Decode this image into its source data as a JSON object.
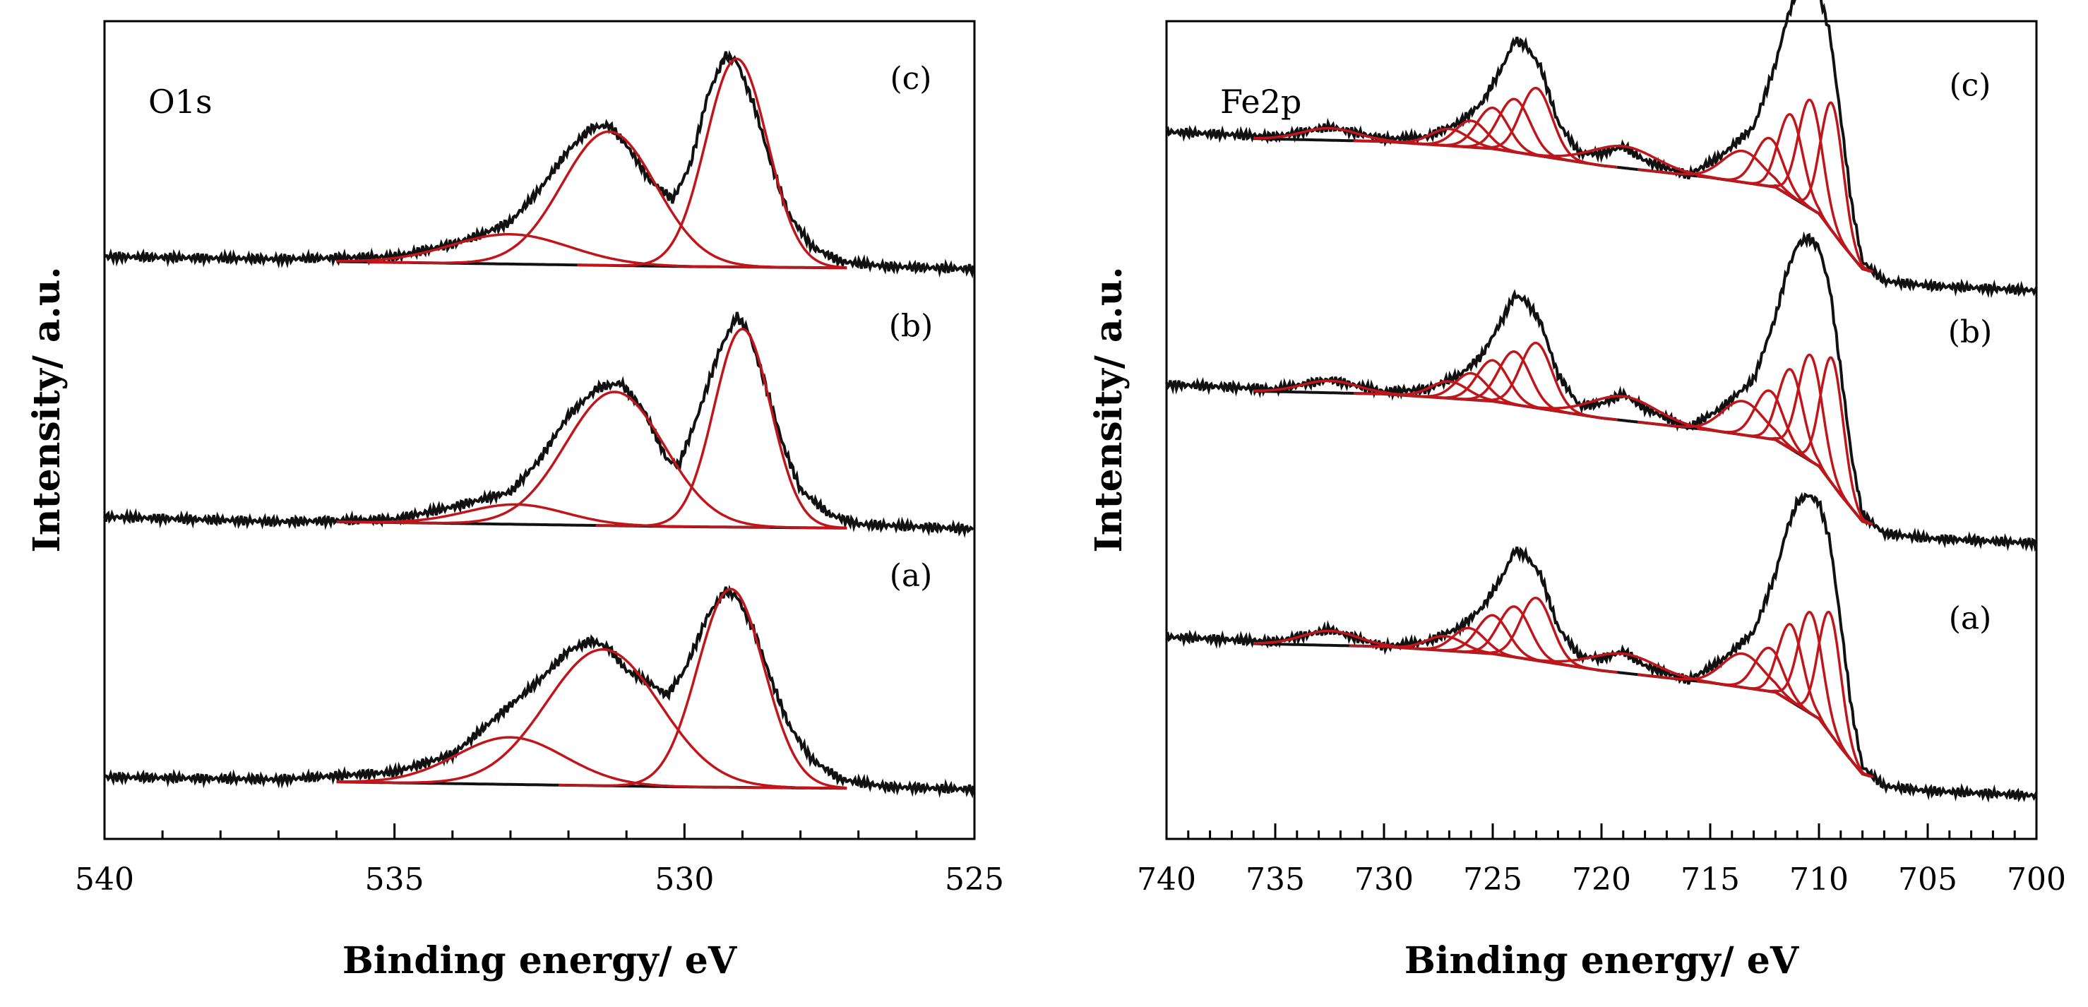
{
  "colors": {
    "experimental": "#111111",
    "component": "#c0161b",
    "axis": "#000000"
  },
  "chart_data": [
    {
      "type": "line",
      "title": "O1s",
      "xlabel": "Binding energy/ eV",
      "ylabel": "Intensity/ a.u.",
      "xlim": [
        540,
        525
      ],
      "x_reversed": true,
      "x_ticks": [
        540,
        535,
        530,
        525
      ],
      "x_tick_labels": [
        "540",
        "535",
        "530",
        "525"
      ],
      "x_minor_step": 1,
      "ylim": [
        -0.2,
        3.1
      ],
      "grid": false,
      "series": [
        {
          "name": "(a)",
          "offset": 0,
          "baseline": {
            "x": [
              540,
              536,
              530,
              525
            ],
            "y": [
              0.05,
              0.03,
              0.01,
              0.0
            ]
          },
          "components": [
            {
              "center": 533.0,
              "height": 0.19,
              "fwhm": 2.2
            },
            {
              "center": 531.4,
              "height": 0.55,
              "fwhm": 2.3
            },
            {
              "center": 529.2,
              "height": 0.8,
              "fwhm": 1.35
            }
          ],
          "envelope": {
            "x": [
              540,
              537,
              535,
              534,
              533.5,
              533,
              532.5,
              532,
              531.6,
              531.3,
              531,
              530.6,
              530.3,
              530,
              529.6,
              529.3,
              529.1,
              528.8,
              528.5,
              528.2,
              527.8,
              527.3,
              526.5,
              525
            ],
            "y": [
              0.05,
              0.04,
              0.07,
              0.14,
              0.24,
              0.34,
              0.44,
              0.56,
              0.6,
              0.57,
              0.48,
              0.43,
              0.38,
              0.48,
              0.7,
              0.8,
              0.78,
              0.64,
              0.44,
              0.26,
              0.12,
              0.04,
              0.01,
              0.0
            ]
          }
        },
        {
          "name": "(b)",
          "offset": 1.05,
          "baseline": {
            "x": [
              540,
              536,
              530,
              525
            ],
            "y": [
              0.05,
              0.03,
              0.01,
              0.0
            ]
          },
          "components": [
            {
              "center": 532.9,
              "height": 0.08,
              "fwhm": 2.0
            },
            {
              "center": 531.2,
              "height": 0.54,
              "fwhm": 2.0
            },
            {
              "center": 529.0,
              "height": 0.8,
              "fwhm": 1.15
            }
          ],
          "envelope": {
            "x": [
              540,
              537,
              535,
              534,
              533.5,
              533,
              532.5,
              532,
              531.5,
              531.1,
              530.7,
              530.3,
              530.1,
              529.8,
              529.4,
              529.1,
              528.9,
              528.6,
              528.3,
              528,
              527.5,
              527,
              526,
              525
            ],
            "y": [
              0.05,
              0.03,
              0.04,
              0.09,
              0.12,
              0.15,
              0.28,
              0.46,
              0.57,
              0.59,
              0.48,
              0.28,
              0.26,
              0.44,
              0.72,
              0.86,
              0.8,
              0.58,
              0.34,
              0.16,
              0.06,
              0.02,
              0.01,
              0.0
            ]
          }
        },
        {
          "name": "(c)",
          "offset": 2.1,
          "baseline": {
            "x": [
              540,
              536,
              530,
              525
            ],
            "y": [
              0.05,
              0.03,
              0.01,
              0.0
            ]
          },
          "components": [
            {
              "center": 533.0,
              "height": 0.12,
              "fwhm": 2.4
            },
            {
              "center": 531.3,
              "height": 0.54,
              "fwhm": 1.9
            },
            {
              "center": 529.1,
              "height": 0.84,
              "fwhm": 1.25
            }
          ],
          "envelope": {
            "x": [
              540,
              537,
              535,
              534,
              533.5,
              533,
              532.5,
              532,
              531.6,
              531.3,
              531,
              530.6,
              530.2,
              529.9,
              529.6,
              529.3,
              529.1,
              528.8,
              528.5,
              528.2,
              527.8,
              527.3,
              526.5,
              525
            ],
            "y": [
              0.05,
              0.04,
              0.05,
              0.1,
              0.14,
              0.19,
              0.32,
              0.48,
              0.57,
              0.58,
              0.5,
              0.36,
              0.28,
              0.42,
              0.7,
              0.86,
              0.84,
              0.66,
              0.42,
              0.22,
              0.09,
              0.03,
              0.01,
              0.0
            ]
          }
        }
      ]
    },
    {
      "type": "line",
      "title": "Fe2p",
      "xlabel": "Binding energy/ eV",
      "ylabel": "Intensity/ a.u.",
      "xlim": [
        740,
        700
      ],
      "x_reversed": true,
      "x_ticks": [
        740,
        735,
        730,
        725,
        720,
        715,
        710,
        705,
        700
      ],
      "x_tick_labels": [
        "740",
        "735",
        "730",
        "725",
        "720",
        "715",
        "710",
        "705",
        "700"
      ],
      "x_minor_step": 1,
      "ylim": [
        -0.2,
        3.2
      ],
      "grid": false,
      "series": [
        {
          "name": "(a)",
          "offset": 0,
          "baseline": {
            "x": [
              740,
              730,
              725,
              720,
              715,
              712,
              710,
              709,
              708,
              706,
              700
            ],
            "y": [
              0.62,
              0.6,
              0.57,
              0.5,
              0.45,
              0.41,
              0.3,
              0.18,
              0.07,
              0.02,
              0.0
            ]
          },
          "components": [
            {
              "center": 732.5,
              "height": 0.06,
              "fwhm": 3.0
            },
            {
              "center": 727.2,
              "height": 0.06,
              "fwhm": 2.0
            },
            {
              "center": 726.1,
              "height": 0.1,
              "fwhm": 1.7
            },
            {
              "center": 725.0,
              "height": 0.16,
              "fwhm": 1.7
            },
            {
              "center": 724.0,
              "height": 0.21,
              "fwhm": 1.7
            },
            {
              "center": 723.0,
              "height": 0.26,
              "fwhm": 1.7
            },
            {
              "center": 719.0,
              "height": 0.08,
              "fwhm": 3.5
            },
            {
              "center": 713.5,
              "height": 0.14,
              "fwhm": 2.2
            },
            {
              "center": 712.3,
              "height": 0.18,
              "fwhm": 1.5
            },
            {
              "center": 711.3,
              "height": 0.32,
              "fwhm": 1.3
            },
            {
              "center": 710.4,
              "height": 0.42,
              "fwhm": 1.3
            },
            {
              "center": 709.5,
              "height": 0.5,
              "fwhm": 1.2
            }
          ],
          "envelope": {
            "x": [
              740,
              735,
              732.5,
              730,
              728,
              726.5,
              725.5,
              724.5,
              724,
              723.5,
              722.8,
              722,
              721,
              720,
              719,
              718,
              716,
              714.5,
              713,
              712,
              711.5,
              711,
              710.5,
              710,
              709.5,
              709,
              708.5,
              708,
              707,
              705,
              700
            ],
            "y": [
              0.64,
              0.62,
              0.67,
              0.6,
              0.62,
              0.68,
              0.76,
              0.9,
              1.0,
              0.98,
              0.9,
              0.68,
              0.56,
              0.55,
              0.58,
              0.52,
              0.46,
              0.54,
              0.66,
              0.9,
              1.08,
              1.2,
              1.23,
              1.2,
              1.04,
              0.7,
              0.34,
              0.1,
              0.02,
              0.0,
              -0.02
            ]
          }
        },
        {
          "name": "(b)",
          "offset": 1.05,
          "baseline": {
            "x": [
              740,
              730,
              725,
              720,
              715,
              712,
              710,
              709,
              708,
              706,
              700
            ],
            "y": [
              0.62,
              0.6,
              0.57,
              0.5,
              0.45,
              0.41,
              0.3,
              0.18,
              0.07,
              0.02,
              0.0
            ]
          },
          "components": [
            {
              "center": 732.5,
              "height": 0.05,
              "fwhm": 3.0
            },
            {
              "center": 727.0,
              "height": 0.07,
              "fwhm": 2.0
            },
            {
              "center": 726.0,
              "height": 0.11,
              "fwhm": 1.7
            },
            {
              "center": 725.0,
              "height": 0.17,
              "fwhm": 1.7
            },
            {
              "center": 724.0,
              "height": 0.22,
              "fwhm": 1.7
            },
            {
              "center": 723.0,
              "height": 0.27,
              "fwhm": 1.7
            },
            {
              "center": 719.0,
              "height": 0.1,
              "fwhm": 3.5
            },
            {
              "center": 713.5,
              "height": 0.14,
              "fwhm": 2.2
            },
            {
              "center": 712.3,
              "height": 0.2,
              "fwhm": 1.5
            },
            {
              "center": 711.3,
              "height": 0.33,
              "fwhm": 1.3
            },
            {
              "center": 710.4,
              "height": 0.44,
              "fwhm": 1.3
            },
            {
              "center": 709.4,
              "height": 0.52,
              "fwhm": 1.2
            }
          ],
          "envelope": {
            "x": [
              740,
              735,
              732.5,
              730,
              728,
              726.5,
              725.5,
              724.5,
              724,
              723.5,
              722.8,
              722,
              721,
              720,
              719,
              718,
              716,
              714.5,
              713,
              712,
              711.5,
              711,
              710.5,
              710,
              709.5,
              709,
              708.5,
              708,
              707,
              705,
              700
            ],
            "y": [
              0.64,
              0.62,
              0.66,
              0.61,
              0.62,
              0.68,
              0.76,
              0.92,
              1.01,
              0.99,
              0.9,
              0.68,
              0.55,
              0.56,
              0.6,
              0.54,
              0.46,
              0.54,
              0.66,
              0.92,
              1.1,
              1.22,
              1.25,
              1.21,
              1.04,
              0.7,
              0.34,
              0.1,
              0.02,
              0.0,
              -0.02
            ]
          }
        },
        {
          "name": "(c)",
          "offset": 2.1,
          "baseline": {
            "x": [
              740,
              730,
              725,
              720,
              715,
              712,
              710,
              709,
              708,
              706,
              700
            ],
            "y": [
              0.62,
              0.6,
              0.57,
              0.5,
              0.45,
              0.41,
              0.3,
              0.18,
              0.07,
              0.02,
              0.0
            ]
          },
          "components": [
            {
              "center": 732.5,
              "height": 0.05,
              "fwhm": 3.0
            },
            {
              "center": 727.0,
              "height": 0.07,
              "fwhm": 2.0
            },
            {
              "center": 726.0,
              "height": 0.11,
              "fwhm": 1.7
            },
            {
              "center": 725.0,
              "height": 0.17,
              "fwhm": 1.7
            },
            {
              "center": 724.0,
              "height": 0.22,
              "fwhm": 1.7
            },
            {
              "center": 723.0,
              "height": 0.28,
              "fwhm": 1.7
            },
            {
              "center": 719.0,
              "height": 0.09,
              "fwhm": 3.5
            },
            {
              "center": 713.5,
              "height": 0.13,
              "fwhm": 2.2
            },
            {
              "center": 712.3,
              "height": 0.2,
              "fwhm": 1.5
            },
            {
              "center": 711.3,
              "height": 0.34,
              "fwhm": 1.3
            },
            {
              "center": 710.4,
              "height": 0.45,
              "fwhm": 1.3
            },
            {
              "center": 709.4,
              "height": 0.53,
              "fwhm": 1.2
            }
          ],
          "envelope": {
            "x": [
              740,
              735,
              732.5,
              730,
              728,
              726.5,
              725.5,
              724.5,
              724,
              723.5,
              722.8,
              722,
              721,
              720,
              719,
              718,
              716,
              714.5,
              713,
              712,
              711.5,
              711,
              710.5,
              710,
              709.5,
              709,
              708.5,
              708,
              707,
              705,
              700
            ],
            "y": [
              0.64,
              0.62,
              0.66,
              0.61,
              0.62,
              0.68,
              0.76,
              0.92,
              1.02,
              1.0,
              0.91,
              0.68,
              0.55,
              0.55,
              0.58,
              0.52,
              0.46,
              0.54,
              0.66,
              0.92,
              1.1,
              1.23,
              1.26,
              1.22,
              1.05,
              0.7,
              0.34,
              0.1,
              0.02,
              0.0,
              -0.02
            ]
          }
        }
      ]
    }
  ]
}
